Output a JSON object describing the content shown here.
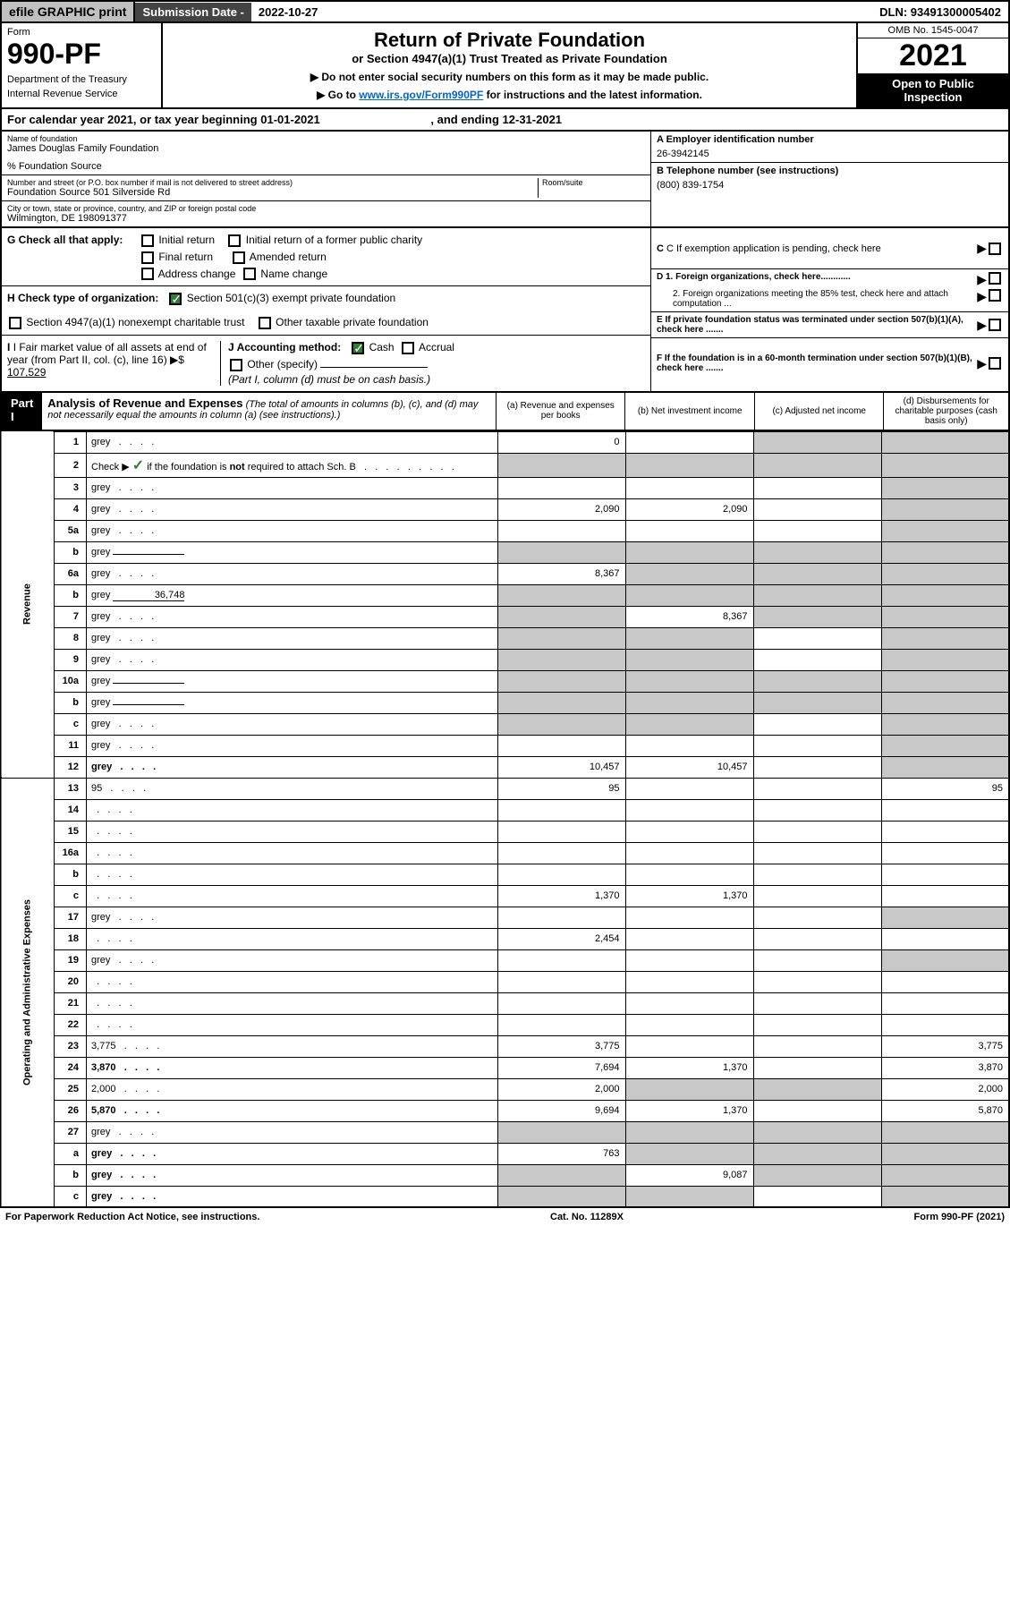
{
  "top": {
    "efile": "efile GRAPHIC print",
    "sub_label": "Submission Date -",
    "sub_date": "2022-10-27",
    "dln": "DLN: 93491300005402"
  },
  "header": {
    "form": "Form",
    "form_num": "990-PF",
    "dept1": "Department of the Treasury",
    "dept2": "Internal Revenue Service",
    "title": "Return of Private Foundation",
    "subtitle": "or Section 4947(a)(1) Trust Treated as Private Foundation",
    "instr1": "▶ Do not enter social security numbers on this form as it may be made public.",
    "instr2_pre": "▶ Go to ",
    "instr2_link": "www.irs.gov/Form990PF",
    "instr2_post": " for instructions and the latest information.",
    "omb": "OMB No. 1545-0047",
    "year": "2021",
    "open": "Open to Public Inspection"
  },
  "cal_year": {
    "prefix": "For calendar year 2021, or tax year beginning ",
    "begin": "01-01-2021",
    "mid": " , and ending ",
    "end": "12-31-2021"
  },
  "info": {
    "name_label": "Name of foundation",
    "name": "James Douglas Family Foundation",
    "care_of": "% Foundation Source",
    "addr_label": "Number and street (or P.O. box number if mail is not delivered to street address)",
    "addr": "Foundation Source 501 Silverside Rd",
    "room_label": "Room/suite",
    "city_label": "City or town, state or province, country, and ZIP or foreign postal code",
    "city": "Wilmington, DE  198091377",
    "a_label": "A Employer identification number",
    "a_val": "26-3942145",
    "b_label": "B Telephone number (see instructions)",
    "b_val": "(800) 839-1754",
    "c_label": "C If exemption application is pending, check here",
    "d1": "D 1. Foreign organizations, check here............",
    "d2": "2. Foreign organizations meeting the 85% test, check here and attach computation ...",
    "e_label": "E  If private foundation status was terminated under section 507(b)(1)(A), check here .......",
    "f_label": "F  If the foundation is in a 60-month termination under section 507(b)(1)(B), check here .......",
    "g_label": "G Check all that apply:",
    "g_initial": "Initial return",
    "g_initial_former": "Initial return of a former public charity",
    "g_final": "Final return",
    "g_amended": "Amended return",
    "g_address": "Address change",
    "g_name": "Name change",
    "h_label": "H Check type of organization:",
    "h_501c3": "Section 501(c)(3) exempt private foundation",
    "h_4947": "Section 4947(a)(1) nonexempt charitable trust",
    "h_other": "Other taxable private foundation",
    "i_label": "I Fair market value of all assets at end of year (from Part II, col. (c), line 16)",
    "i_val": "107,529",
    "j_label": "J Accounting method:",
    "j_cash": "Cash",
    "j_accrual": "Accrual",
    "j_other": "Other (specify)",
    "j_note": "(Part I, column (d) must be on cash basis.)"
  },
  "part1": {
    "label": "Part I",
    "title": "Analysis of Revenue and Expenses",
    "note": "(The total of amounts in columns (b), (c), and (d) may not necessarily equal the amounts in column (a) (see instructions).)",
    "col_a": "(a)   Revenue and expenses per books",
    "col_b": "(b)   Net investment income",
    "col_c": "(c)   Adjusted net income",
    "col_d": "(d)   Disbursements for charitable purposes (cash basis only)"
  },
  "side_labels": {
    "revenue": "Revenue",
    "expenses": "Operating and Administrative Expenses"
  },
  "rows": [
    {
      "n": "1",
      "d": "grey",
      "a": "0",
      "b": "",
      "c": "grey"
    },
    {
      "n": "2",
      "d": "grey",
      "a": "grey",
      "b": "grey",
      "c": "grey",
      "checkmark": true
    },
    {
      "n": "3",
      "d": "grey",
      "a": "",
      "b": "",
      "c": ""
    },
    {
      "n": "4",
      "d": "grey",
      "a": "2,090",
      "b": "2,090",
      "c": ""
    },
    {
      "n": "5a",
      "d": "grey",
      "a": "",
      "b": "",
      "c": ""
    },
    {
      "n": "b",
      "d": "grey",
      "a": "grey",
      "b": "grey",
      "c": "grey",
      "inline": ""
    },
    {
      "n": "6a",
      "d": "grey",
      "a": "8,367",
      "b": "grey",
      "c": "grey"
    },
    {
      "n": "b",
      "d": "grey",
      "a": "grey",
      "b": "grey",
      "c": "grey",
      "inline": "36,748"
    },
    {
      "n": "7",
      "d": "grey",
      "a": "grey",
      "b": "8,367",
      "c": "grey"
    },
    {
      "n": "8",
      "d": "grey",
      "a": "grey",
      "b": "grey",
      "c": ""
    },
    {
      "n": "9",
      "d": "grey",
      "a": "grey",
      "b": "grey",
      "c": ""
    },
    {
      "n": "10a",
      "d": "grey",
      "a": "grey",
      "b": "grey",
      "c": "grey",
      "inline": ""
    },
    {
      "n": "b",
      "d": "grey",
      "a": "grey",
      "b": "grey",
      "c": "grey",
      "inline": ""
    },
    {
      "n": "c",
      "d": "grey",
      "a": "grey",
      "b": "grey",
      "c": ""
    },
    {
      "n": "11",
      "d": "grey",
      "a": "",
      "b": "",
      "c": ""
    },
    {
      "n": "12",
      "d": "grey",
      "a": "10,457",
      "b": "10,457",
      "c": "",
      "bold": true
    },
    {
      "n": "13",
      "d": "95",
      "a": "95",
      "b": "",
      "c": ""
    },
    {
      "n": "14",
      "d": "",
      "a": "",
      "b": "",
      "c": ""
    },
    {
      "n": "15",
      "d": "",
      "a": "",
      "b": "",
      "c": ""
    },
    {
      "n": "16a",
      "d": "",
      "a": "",
      "b": "",
      "c": ""
    },
    {
      "n": "b",
      "d": "",
      "a": "",
      "b": "",
      "c": ""
    },
    {
      "n": "c",
      "d": "",
      "a": "1,370",
      "b": "1,370",
      "c": ""
    },
    {
      "n": "17",
      "d": "grey",
      "a": "",
      "b": "",
      "c": ""
    },
    {
      "n": "18",
      "d": "",
      "a": "2,454",
      "b": "",
      "c": ""
    },
    {
      "n": "19",
      "d": "grey",
      "a": "",
      "b": "",
      "c": ""
    },
    {
      "n": "20",
      "d": "",
      "a": "",
      "b": "",
      "c": ""
    },
    {
      "n": "21",
      "d": "",
      "a": "",
      "b": "",
      "c": ""
    },
    {
      "n": "22",
      "d": "",
      "a": "",
      "b": "",
      "c": ""
    },
    {
      "n": "23",
      "d": "3,775",
      "a": "3,775",
      "b": "",
      "c": ""
    },
    {
      "n": "24",
      "d": "3,870",
      "a": "7,694",
      "b": "1,370",
      "c": "",
      "bold": true
    },
    {
      "n": "25",
      "d": "2,000",
      "a": "2,000",
      "b": "grey",
      "c": "grey"
    },
    {
      "n": "26",
      "d": "5,870",
      "a": "9,694",
      "b": "1,370",
      "c": "",
      "bold": true
    },
    {
      "n": "27",
      "d": "grey",
      "a": "grey",
      "b": "grey",
      "c": "grey"
    },
    {
      "n": "a",
      "d": "grey",
      "a": "763",
      "b": "grey",
      "c": "grey",
      "bold": true
    },
    {
      "n": "b",
      "d": "grey",
      "a": "grey",
      "b": "9,087",
      "c": "grey",
      "bold": true
    },
    {
      "n": "c",
      "d": "grey",
      "a": "grey",
      "b": "grey",
      "c": "",
      "bold": true
    }
  ],
  "footer": {
    "left": "For Paperwork Reduction Act Notice, see instructions.",
    "mid": "Cat. No. 11289X",
    "right": "Form 990-PF (2021)"
  }
}
